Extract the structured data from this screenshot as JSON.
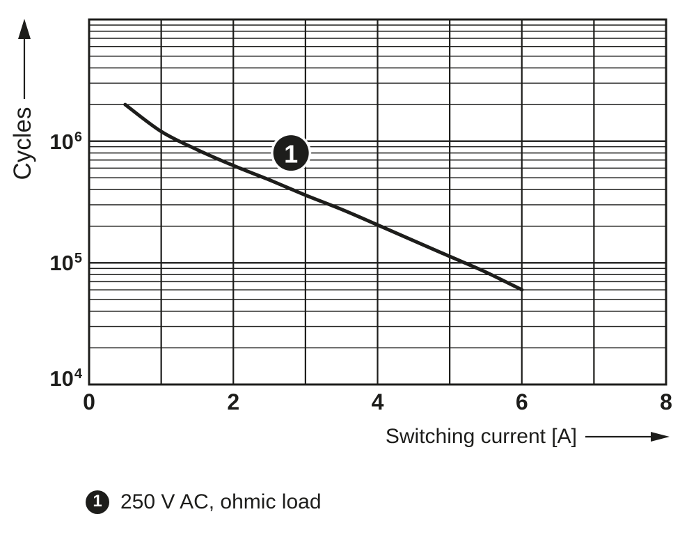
{
  "figure": {
    "background": "#ffffff",
    "ink": "#1d1d1b"
  },
  "chart_data": {
    "type": "line",
    "title": "",
    "xlabel": "Switching current [A]",
    "ylabel": "Cycles",
    "grid": "on",
    "x_axis": {
      "min": 0,
      "max": 8,
      "gridline_step": 1,
      "tick_values": [
        0,
        2,
        4,
        6,
        8
      ],
      "tick_labels": [
        "0",
        "2",
        "4",
        "6",
        "8"
      ]
    },
    "y_axis": {
      "scale": "log",
      "min": 10000,
      "max": 10000000,
      "tick_values": [
        1000000,
        100000,
        10000
      ],
      "tick_labels": [
        {
          "base": "10",
          "exp": "6"
        },
        {
          "base": "10",
          "exp": "5"
        },
        {
          "base": "10",
          "exp": "4"
        }
      ],
      "minor_gridlines": "2-9 each decade"
    },
    "series": [
      {
        "name": "250 V AC, ohmic load",
        "marker": "1",
        "marker_position": {
          "x": 2.8,
          "y": 800000
        },
        "points": [
          [
            0.5,
            2000000
          ],
          [
            1.0,
            1200000
          ],
          [
            1.5,
            850000
          ],
          [
            2.0,
            630000
          ],
          [
            2.5,
            480000
          ],
          [
            3.0,
            360000
          ],
          [
            3.5,
            275000
          ],
          [
            4.0,
            205000
          ],
          [
            4.5,
            152000
          ],
          [
            5.0,
            113000
          ],
          [
            5.5,
            84000
          ],
          [
            6.0,
            60000
          ]
        ]
      }
    ],
    "legend": [
      {
        "marker": "1",
        "label": "250 V AC, ohmic load"
      }
    ],
    "legend_position": "below-chart"
  }
}
